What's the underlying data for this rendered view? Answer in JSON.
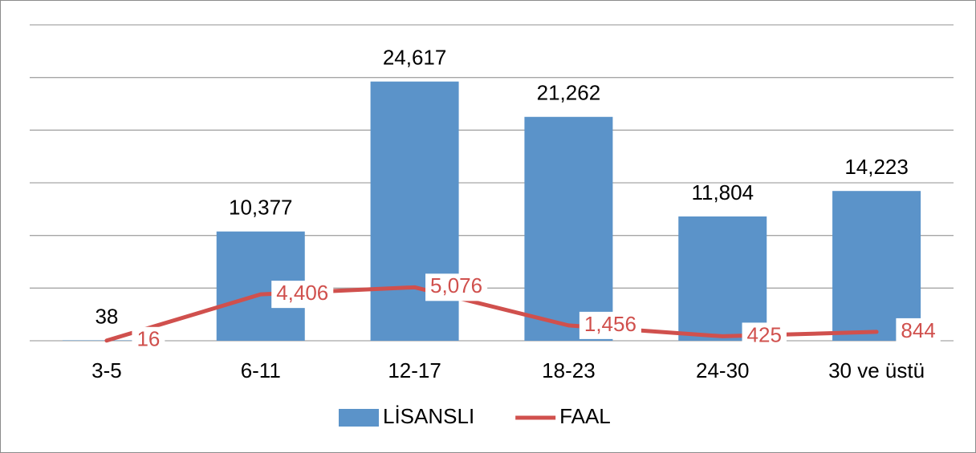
{
  "chart_data": {
    "type": "bar",
    "categories": [
      "3-5",
      "6-11",
      "12-17",
      "18-23",
      "24-30",
      "30 ve üstü"
    ],
    "series": [
      {
        "name": "LİSANSLI",
        "type": "bar",
        "color": "#5b93c9",
        "values": [
          38,
          10377,
          24617,
          21262,
          11804,
          14223
        ],
        "value_labels": [
          "38",
          "10,377",
          "24,617",
          "21,262",
          "11,804",
          "14,223"
        ]
      },
      {
        "name": "FAAL",
        "type": "line",
        "color": "#d0504d",
        "values": [
          16,
          4406,
          5076,
          1456,
          425,
          844
        ],
        "value_labels": [
          "16",
          "4,406",
          "5,076",
          "1,456",
          "425",
          "844"
        ]
      }
    ],
    "ylim": [
      0,
      30000
    ],
    "yticks": [
      0,
      5000,
      10000,
      15000,
      20000,
      25000,
      30000
    ],
    "grid": true,
    "legend": "bottom"
  }
}
